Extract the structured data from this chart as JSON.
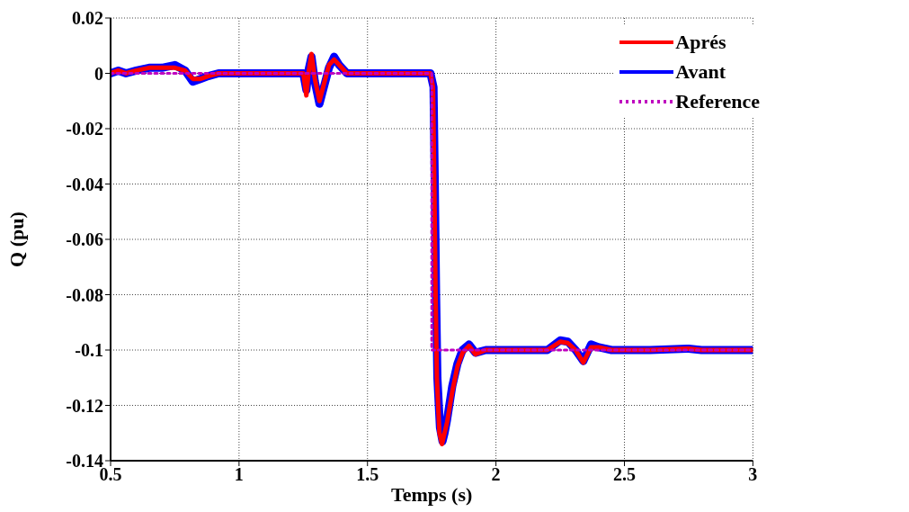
{
  "chart_data": {
    "type": "line",
    "xlabel": "Temps (s)",
    "ylabel": "Q (pu)",
    "xlim": [
      0.5,
      3
    ],
    "xticks": [
      0.5,
      1,
      1.5,
      2,
      2.5,
      3
    ],
    "ylim": [
      -0.14,
      0.02
    ],
    "yticks": [
      0.02,
      0,
      -0.02,
      -0.04,
      -0.06,
      -0.08,
      -0.1,
      -0.12,
      -0.14
    ],
    "grid": true,
    "legend": "top right",
    "marker": "none",
    "series": [
      {
        "name": "Aprés",
        "color": "#ff0000",
        "line_style": "solid",
        "x": [
          0.5,
          0.53,
          0.56,
          0.6,
          0.65,
          0.7,
          0.75,
          0.79,
          0.82,
          0.85,
          0.88,
          0.92,
          1.0,
          1.1,
          1.2,
          1.25,
          1.262,
          1.27,
          1.282,
          1.295,
          1.313,
          1.33,
          1.35,
          1.37,
          1.39,
          1.42,
          1.5,
          1.6,
          1.7,
          1.745,
          1.755,
          1.76,
          1.765,
          1.77,
          1.78,
          1.79,
          1.8,
          1.81,
          1.83,
          1.85,
          1.87,
          1.895,
          1.92,
          1.96,
          2.0,
          2.1,
          2.2,
          2.25,
          2.28,
          2.31,
          2.34,
          2.37,
          2.4,
          2.45,
          2.6,
          2.75,
          2.8,
          2.9,
          3.0
        ],
        "values": [
          0,
          0.001,
          0,
          0.001,
          0.002,
          0.002,
          0.002,
          0.001,
          -0.002,
          -0.002,
          -0.001,
          0,
          0,
          0,
          0,
          0,
          -0.008,
          0,
          0.007,
          -0.002,
          -0.01,
          -0.004,
          0.003,
          0.005,
          0.003,
          0,
          0,
          0,
          0,
          0,
          -0.005,
          -0.04,
          -0.08,
          -0.11,
          -0.13,
          -0.134,
          -0.13,
          -0.126,
          -0.115,
          -0.106,
          -0.101,
          -0.0985,
          -0.1015,
          -0.1,
          -0.1,
          -0.1,
          -0.1,
          -0.097,
          -0.0975,
          -0.1,
          -0.1045,
          -0.099,
          -0.099,
          -0.1,
          -0.1,
          -0.0995,
          -0.1,
          -0.1,
          -0.1
        ]
      },
      {
        "name": "Avant",
        "color": "#0000ff",
        "line_style": "solid",
        "x": [
          0.5,
          0.53,
          0.56,
          0.6,
          0.65,
          0.7,
          0.75,
          0.79,
          0.82,
          0.85,
          0.88,
          0.92,
          1.0,
          1.1,
          1.2,
          1.25,
          1.262,
          1.27,
          1.282,
          1.295,
          1.313,
          1.33,
          1.35,
          1.37,
          1.39,
          1.42,
          1.5,
          1.6,
          1.7,
          1.745,
          1.757,
          1.762,
          1.767,
          1.772,
          1.782,
          1.792,
          1.8,
          1.81,
          1.83,
          1.85,
          1.87,
          1.895,
          1.92,
          1.96,
          2.0,
          2.1,
          2.2,
          2.25,
          2.28,
          2.31,
          2.34,
          2.37,
          2.4,
          2.45,
          2.6,
          2.75,
          2.8,
          2.9,
          3.0
        ],
        "values": [
          0,
          0.001,
          0,
          0.001,
          0.002,
          0.002,
          0.003,
          0.001,
          -0.003,
          -0.002,
          -0.001,
          0,
          0,
          0,
          0,
          0,
          -0.006,
          0.001,
          0.006,
          -0.003,
          -0.011,
          -0.005,
          0.002,
          0.006,
          0.003,
          0,
          0,
          0,
          0,
          0,
          -0.005,
          -0.04,
          -0.08,
          -0.11,
          -0.128,
          -0.133,
          -0.13,
          -0.125,
          -0.113,
          -0.105,
          -0.1,
          -0.098,
          -0.101,
          -0.1,
          -0.1,
          -0.1,
          -0.1,
          -0.0965,
          -0.097,
          -0.1,
          -0.104,
          -0.098,
          -0.099,
          -0.1,
          -0.1,
          -0.0995,
          -0.1,
          -0.1,
          -0.1
        ]
      },
      {
        "name": "Reference",
        "color": "#bf00bf",
        "line_style": "dotted",
        "x": [
          0.5,
          1.75,
          1.75,
          3.0
        ],
        "values": [
          0,
          0,
          -0.1,
          -0.1
        ]
      }
    ]
  }
}
